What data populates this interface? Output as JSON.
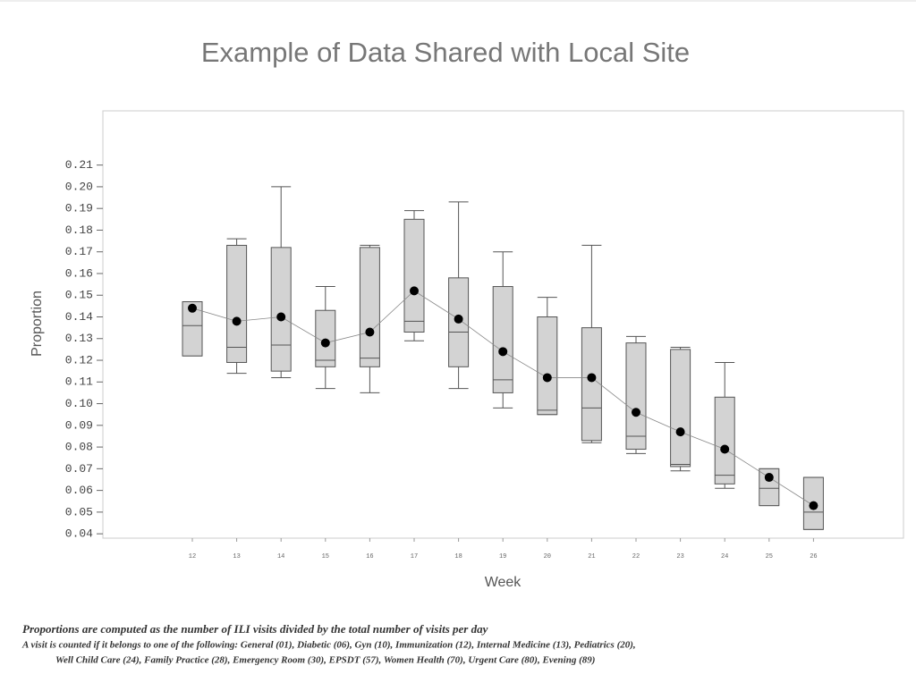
{
  "chart_data": {
    "type": "box",
    "title": "Example of Data Shared with Local Site",
    "x_label": "Week",
    "y_label": "Proportion",
    "categories": [
      "12",
      "13",
      "14",
      "15",
      "16",
      "17",
      "18",
      "19",
      "20",
      "21",
      "22",
      "23",
      "24",
      "25",
      "26"
    ],
    "min": [
      0.122,
      0.114,
      0.112,
      0.107,
      0.105,
      0.129,
      0.107,
      0.098,
      0.095,
      0.082,
      0.077,
      0.069,
      0.061,
      0.053,
      0.042
    ],
    "q1": [
      0.122,
      0.119,
      0.115,
      0.117,
      0.117,
      0.133,
      0.117,
      0.105,
      0.095,
      0.083,
      0.079,
      0.071,
      0.063,
      0.053,
      0.042
    ],
    "median": [
      0.136,
      0.126,
      0.127,
      0.12,
      0.121,
      0.138,
      0.133,
      0.111,
      0.097,
      0.098,
      0.085,
      0.072,
      0.067,
      0.061,
      0.05
    ],
    "q3": [
      0.147,
      0.173,
      0.172,
      0.143,
      0.172,
      0.185,
      0.158,
      0.154,
      0.14,
      0.135,
      0.128,
      0.125,
      0.103,
      0.07,
      0.066
    ],
    "max": [
      0.147,
      0.176,
      0.2,
      0.154,
      0.173,
      0.189,
      0.193,
      0.17,
      0.149,
      0.173,
      0.131,
      0.126,
      0.119,
      0.07,
      0.066
    ],
    "mean": [
      0.144,
      0.138,
      0.14,
      0.128,
      0.133,
      0.152,
      0.139,
      0.124,
      0.112,
      0.112,
      0.096,
      0.087,
      0.079,
      0.066,
      0.053
    ],
    "box_color": "#d3d3d3",
    "mean_color": "#000000",
    "ylim": [
      0.038,
      0.235
    ],
    "yticks": [
      0.04,
      0.05,
      0.06,
      0.07,
      0.08,
      0.09,
      {
        "value": 0.1,
        "label": "0.10"
      },
      0.11,
      0.12,
      0.13,
      0.14,
      0.15,
      0.16,
      0.17,
      0.18,
      0.19,
      {
        "value": 0.2,
        "label": "0.20"
      },
      0.21
    ],
    "footnotes": [
      "Proportions are computed as the number of ILI visits divided by the total number of visits per day",
      "A visit is counted if it belongs to one of the following: General (01), Diabetic (06), Gyn (10), Immunization (12), Internal Medicine (13), Pediatrics (20),",
      "Well Child Care (24), Family Practice (28), Emergency Room (30), EPSDT (57), Women Health (70), Urgent Care (80), Evening (89)"
    ]
  }
}
